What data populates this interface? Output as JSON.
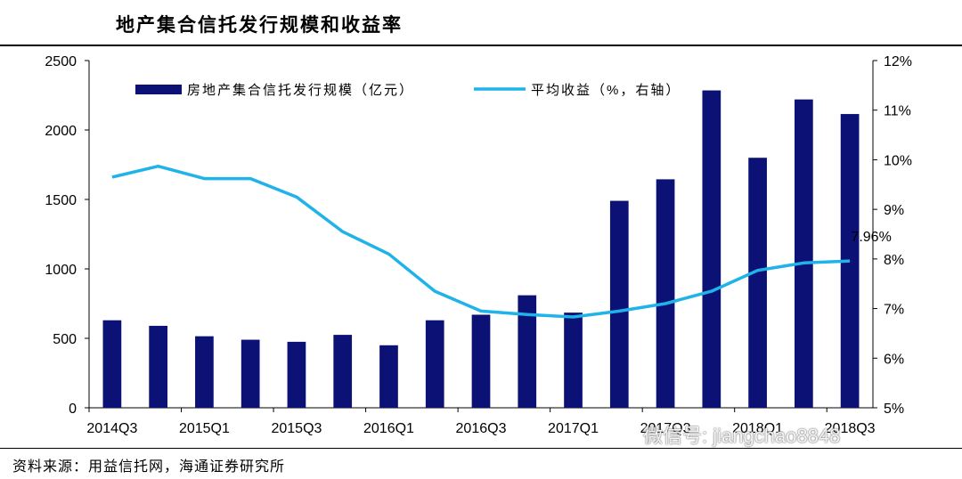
{
  "title": "地产集合信托发行规模和收益率",
  "source": "资料来源：用益信托网，海通证券研究所",
  "watermark": "微信号: jiangchao8848",
  "colors": {
    "bar": "#0b1175",
    "line": "#1fb3ea",
    "axis": "#000000"
  },
  "chart_data": {
    "type": "bar",
    "title": "地产集合信托发行规模和收益率",
    "categories": [
      "2014Q3",
      "2014Q4",
      "2015Q1",
      "2015Q2",
      "2015Q3",
      "2015Q4",
      "2016Q1",
      "2016Q2",
      "2016Q3",
      "2016Q4",
      "2017Q1",
      "2017Q2",
      "2017Q3",
      "2017Q4",
      "2018Q1",
      "2018Q2",
      "2018Q3"
    ],
    "x_tick_labels": [
      "2014Q3",
      "2015Q1",
      "2015Q3",
      "2016Q1",
      "2016Q3",
      "2017Q1",
      "2017Q3",
      "2018Q1",
      "2018Q3"
    ],
    "series": [
      {
        "name": "房地产集合信托发行规模（亿元）",
        "type": "bar",
        "axis": "left",
        "values": [
          630,
          590,
          515,
          490,
          475,
          525,
          450,
          630,
          670,
          810,
          685,
          1490,
          1645,
          2285,
          1800,
          2220,
          2115
        ]
      },
      {
        "name": "平均收益（%，右轴）",
        "type": "line",
        "axis": "right",
        "values": [
          9.65,
          9.87,
          9.62,
          9.62,
          9.25,
          8.55,
          8.1,
          7.35,
          6.95,
          6.88,
          6.83,
          6.95,
          7.1,
          7.35,
          7.77,
          7.92,
          7.96
        ]
      }
    ],
    "y_left": {
      "min": 0,
      "max": 2500,
      "ticks": [
        "0",
        "500",
        "1000",
        "1500",
        "2000",
        "2500"
      ]
    },
    "y_right": {
      "min": 5,
      "max": 12,
      "ticks": [
        "5%",
        "6%",
        "7%",
        "8%",
        "9%",
        "10%",
        "11%",
        "12%"
      ]
    },
    "annotation": "7.96%",
    "legend_position": "top"
  }
}
